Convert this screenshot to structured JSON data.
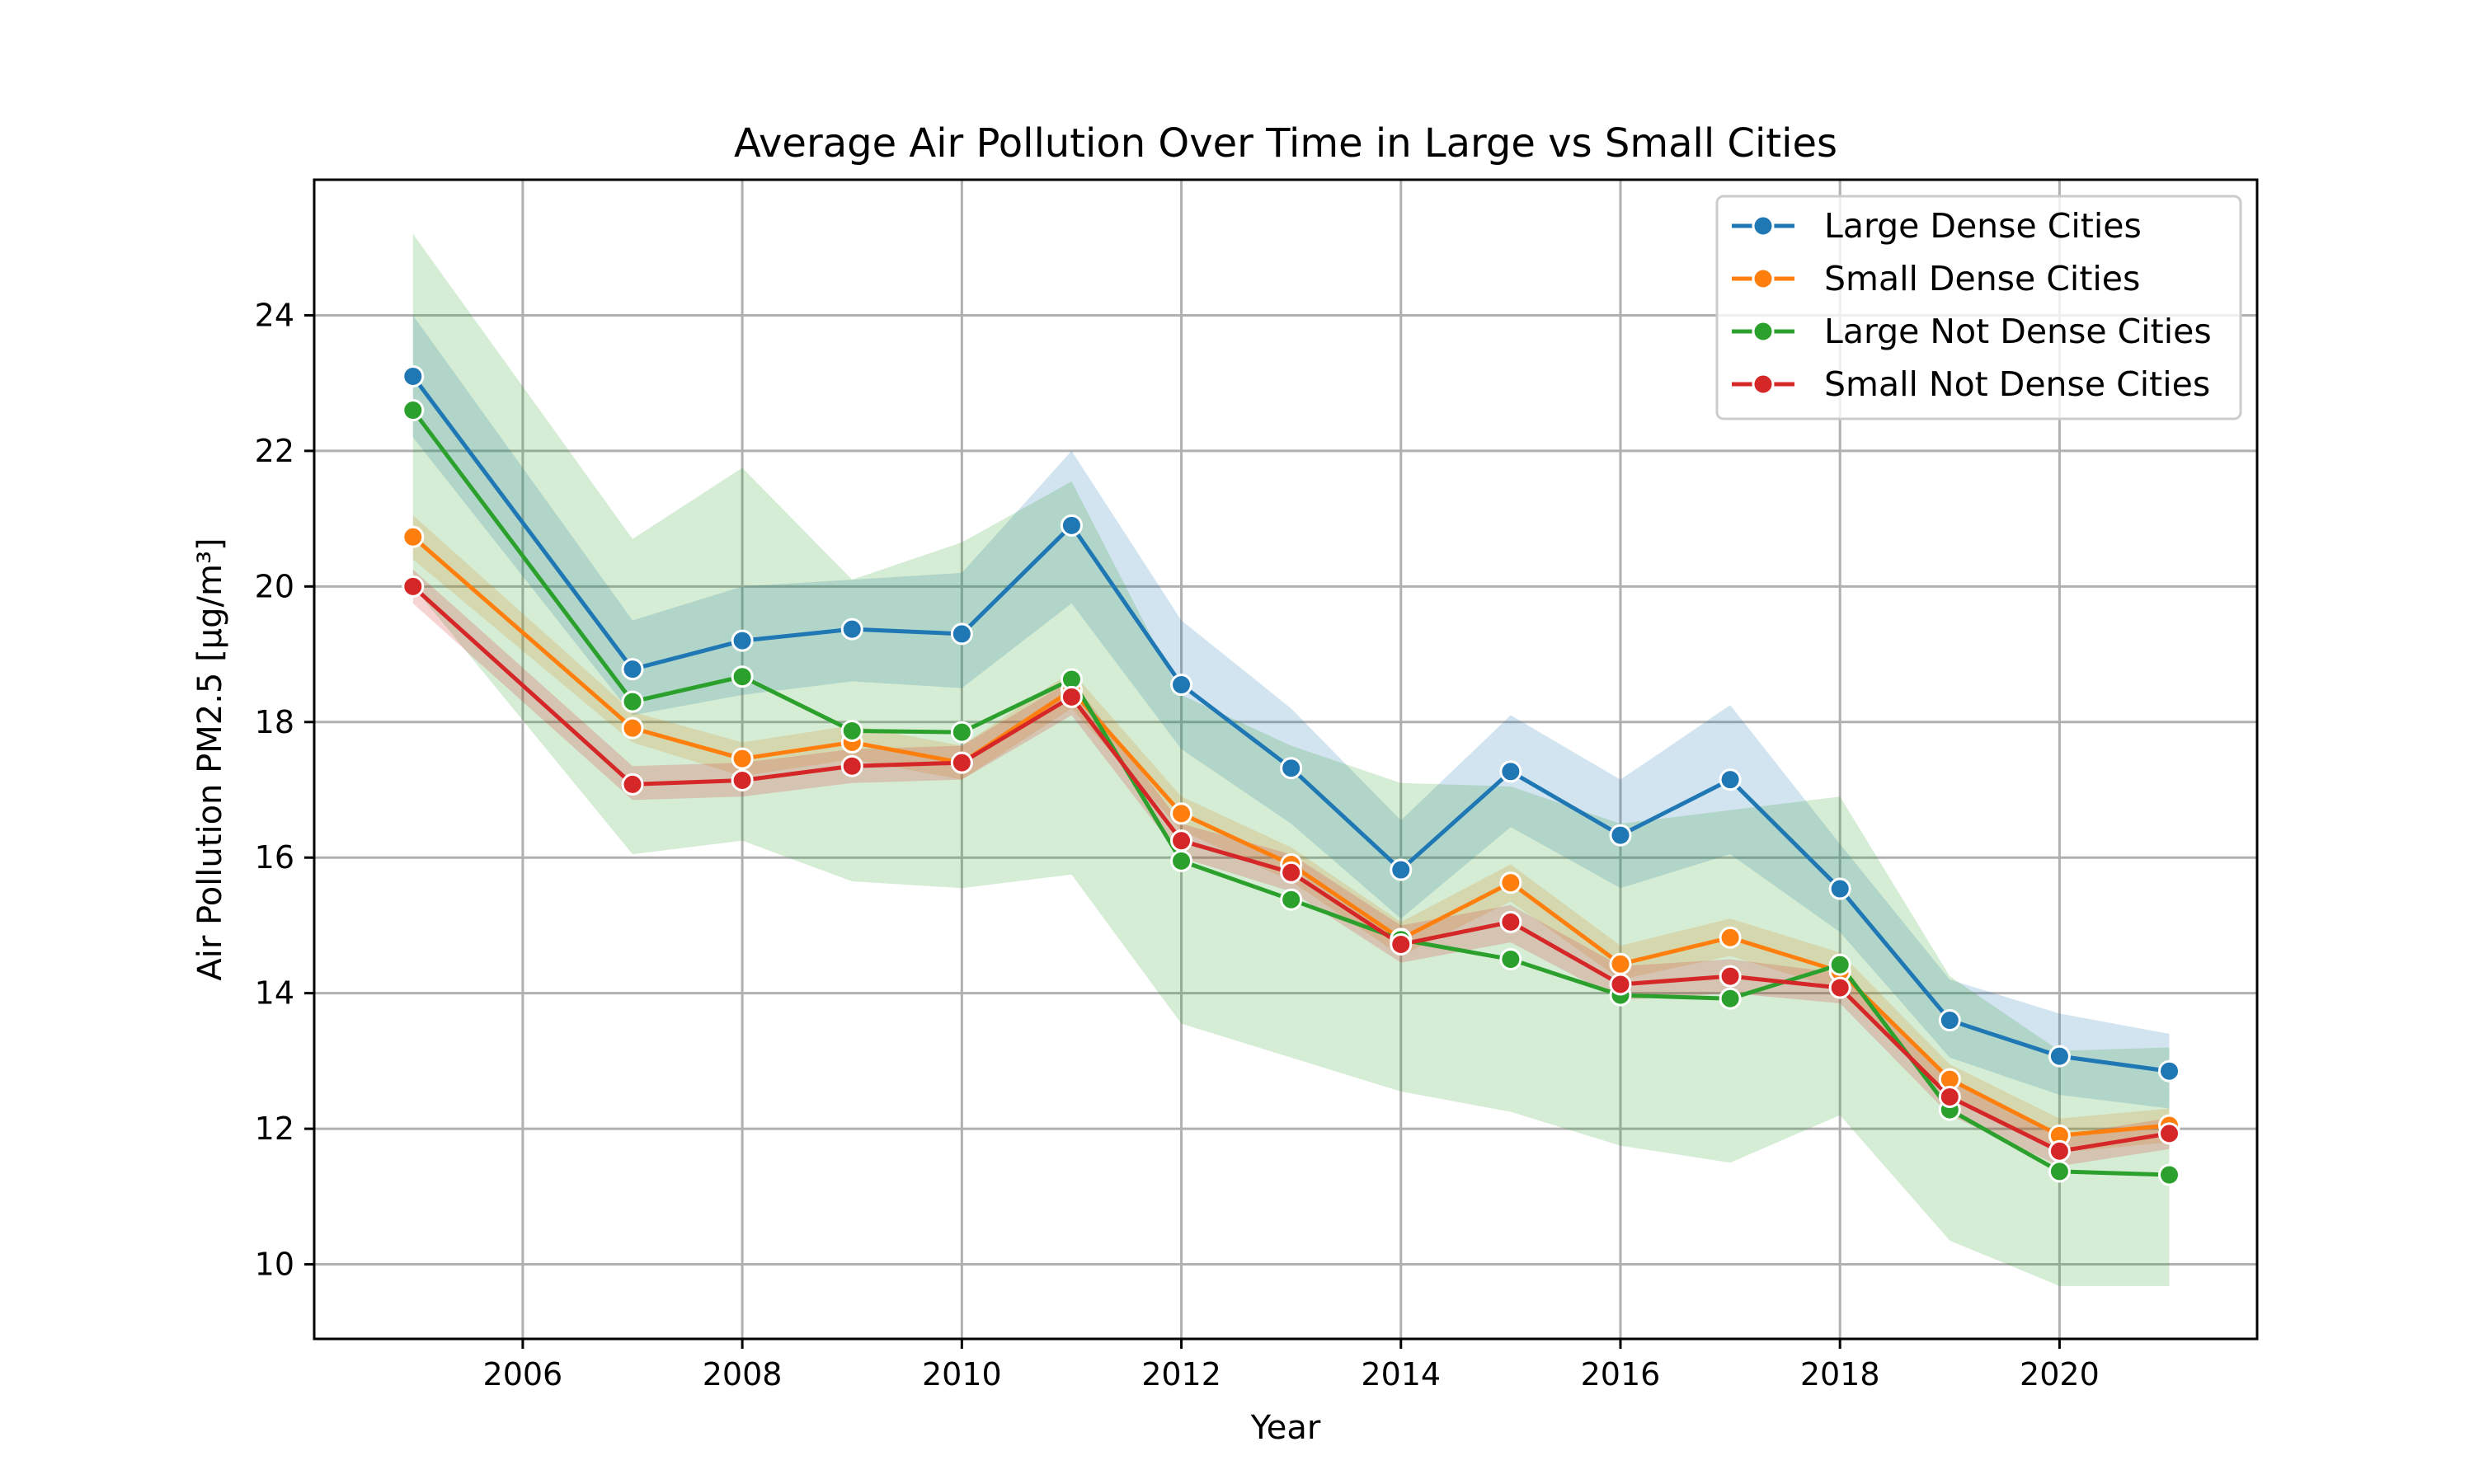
{
  "chart_data": {
    "type": "line",
    "title": "Average Air Pollution Over Time in Large vs Small Cities",
    "xlabel": "Year",
    "ylabel": "Air Pollution PM2.5 [µg/m³]",
    "xlim": [
      2004.1,
      2021.8
    ],
    "ylim": [
      8.9,
      26.0
    ],
    "xticks": [
      2006,
      2008,
      2010,
      2012,
      2014,
      2016,
      2018,
      2020
    ],
    "yticks": [
      10,
      12,
      14,
      16,
      18,
      20,
      22,
      24
    ],
    "grid": true,
    "legend_position": "top-right",
    "x": [
      2005,
      2007,
      2008,
      2009,
      2010,
      2011,
      2012,
      2013,
      2014,
      2015,
      2016,
      2017,
      2018,
      2019,
      2020,
      2021
    ],
    "series": [
      {
        "name": "Large Dense Cities",
        "color": "#1f77b4",
        "values": [
          23.1,
          18.78,
          19.2,
          19.37,
          19.3,
          20.9,
          18.55,
          17.32,
          15.82,
          17.27,
          16.33,
          17.15,
          15.54,
          13.6,
          13.07,
          12.85
        ],
        "ci_low": [
          22.2,
          18.1,
          18.4,
          18.6,
          18.5,
          19.75,
          17.6,
          16.5,
          15.1,
          16.45,
          15.55,
          16.05,
          14.9,
          13.05,
          12.5,
          12.3
        ],
        "ci_high": [
          24.0,
          19.5,
          20.0,
          20.1,
          20.2,
          22.0,
          19.5,
          18.2,
          16.55,
          18.1,
          17.15,
          18.25,
          16.2,
          14.2,
          13.7,
          13.4
        ]
      },
      {
        "name": "Small Dense Cities",
        "color": "#ff7f0e",
        "values": [
          20.73,
          17.91,
          17.46,
          17.7,
          17.4,
          18.47,
          16.65,
          15.9,
          14.8,
          15.63,
          14.43,
          14.82,
          14.32,
          12.73,
          11.9,
          12.05
        ],
        "ci_low": [
          20.4,
          17.7,
          17.2,
          17.45,
          17.15,
          18.2,
          16.4,
          15.65,
          14.55,
          15.35,
          14.2,
          14.55,
          14.05,
          12.5,
          11.65,
          11.8
        ],
        "ci_high": [
          21.05,
          18.15,
          17.7,
          17.95,
          17.65,
          18.75,
          16.9,
          16.15,
          15.05,
          15.9,
          14.7,
          15.1,
          14.6,
          12.95,
          12.15,
          12.3
        ]
      },
      {
        "name": "Large Not Dense Cities",
        "color": "#2ca02c",
        "values": [
          22.6,
          18.3,
          18.67,
          17.87,
          17.85,
          18.63,
          15.95,
          15.38,
          14.79,
          14.5,
          13.97,
          13.92,
          14.42,
          12.28,
          11.37,
          11.32
        ],
        "ci_low": [
          20.0,
          16.05,
          16.25,
          15.65,
          15.55,
          15.75,
          13.55,
          13.05,
          12.55,
          12.25,
          11.75,
          11.5,
          12.2,
          10.35,
          9.68,
          9.68
        ],
        "ci_high": [
          25.2,
          20.7,
          21.75,
          20.1,
          20.65,
          21.55,
          18.4,
          17.65,
          17.1,
          17.05,
          16.5,
          16.7,
          16.9,
          14.25,
          13.15,
          13.2
        ]
      },
      {
        "name": "Small Not Dense Cities",
        "color": "#d62728",
        "values": [
          20.0,
          17.08,
          17.14,
          17.35,
          17.4,
          18.37,
          16.25,
          15.78,
          14.72,
          15.05,
          14.13,
          14.25,
          14.08,
          12.47,
          11.67,
          11.93
        ],
        "ci_low": [
          19.75,
          16.85,
          16.9,
          17.1,
          17.15,
          18.1,
          16.0,
          15.5,
          14.45,
          14.75,
          13.9,
          14.0,
          13.85,
          12.2,
          11.45,
          11.7
        ],
        "ci_high": [
          20.25,
          17.35,
          17.4,
          17.6,
          17.65,
          18.62,
          16.5,
          16.05,
          15.0,
          15.3,
          14.4,
          14.5,
          14.3,
          12.72,
          11.9,
          12.16
        ]
      }
    ]
  }
}
